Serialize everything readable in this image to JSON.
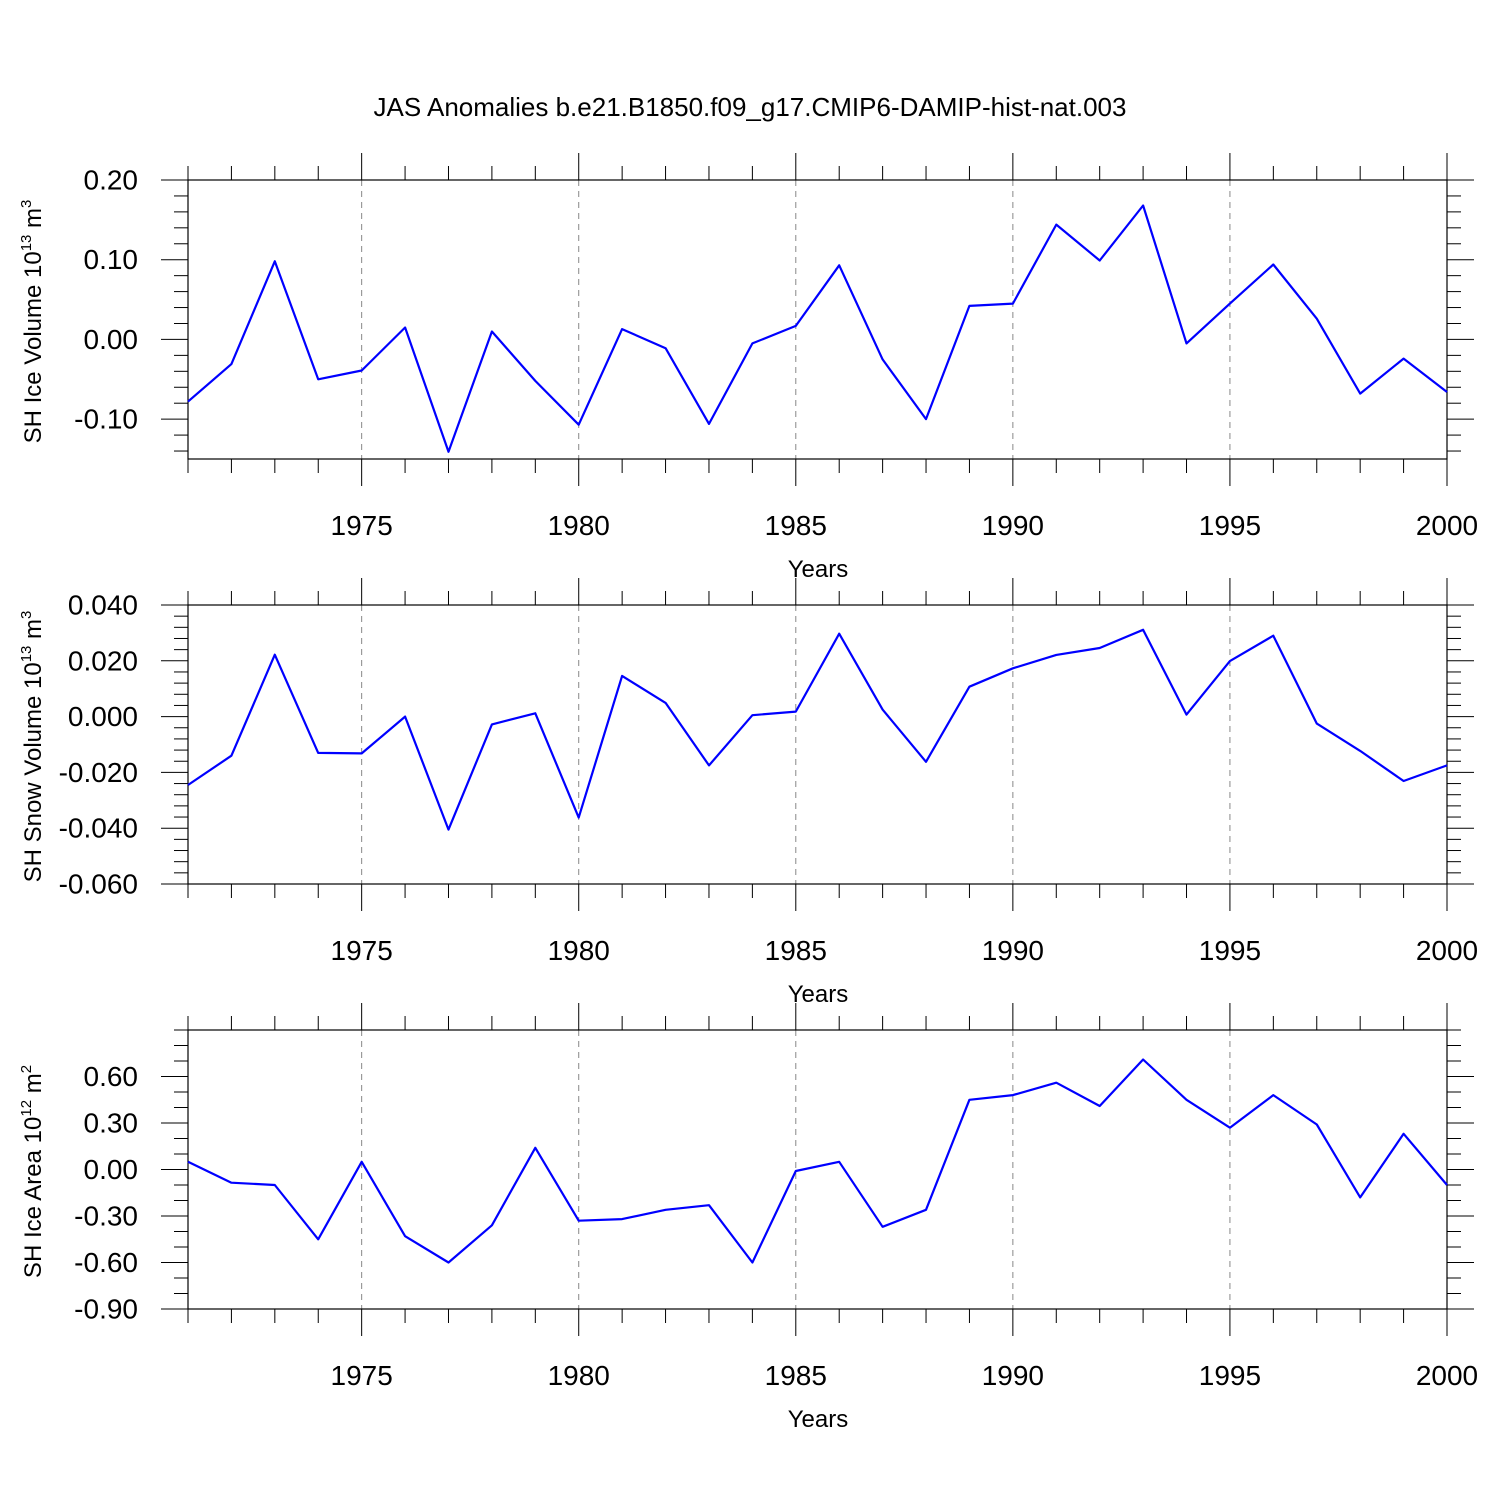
{
  "title": "JAS Anomalies b.e21.B1850.f09_g17.CMIP6-DAMIP-hist-nat.003",
  "line_color": "#0000ff",
  "chart_data": [
    {
      "type": "line",
      "ylabel_prefix": "SH Ice Volume 10",
      "ylabel_exp": "13",
      "ylabel_unit": " m",
      "ylabel_unit_exp": "3",
      "xlabel": "Years",
      "xlim": [
        1971,
        2000
      ],
      "ylim": [
        -0.15,
        0.2
      ],
      "yticks": [
        0.2,
        0.1,
        0.0,
        -0.1
      ],
      "ytick_labels": [
        "0.20",
        "0.10",
        "0.00",
        "-0.10"
      ],
      "xticks": [
        1975,
        1980,
        1985,
        1990,
        1995,
        2000
      ],
      "xtick_labels": [
        "1975",
        "1980",
        "1985",
        "1990",
        "1995",
        "2000"
      ],
      "x": [
        1971,
        1972,
        1973,
        1974,
        1975,
        1976,
        1977,
        1978,
        1979,
        1980,
        1981,
        1982,
        1983,
        1984,
        1985,
        1986,
        1987,
        1988,
        1989,
        1990,
        1991,
        1992,
        1993,
        1994,
        1995,
        1996,
        1997,
        1998,
        1999,
        2000
      ],
      "values": [
        -0.078,
        -0.031,
        0.098,
        -0.05,
        -0.039,
        0.015,
        -0.141,
        0.01,
        -0.052,
        -0.107,
        0.013,
        -0.011,
        -0.106,
        -0.005,
        0.017,
        0.093,
        -0.025,
        -0.1,
        0.042,
        0.045,
        0.144,
        0.099,
        0.168,
        -0.005,
        0.045,
        0.094,
        0.026,
        -0.068,
        -0.024,
        -0.066
      ]
    },
    {
      "type": "line",
      "ylabel_prefix": "SH Snow Volume 10",
      "ylabel_exp": "13",
      "ylabel_unit": " m",
      "ylabel_unit_exp": "3",
      "xlabel": "Years",
      "xlim": [
        1971,
        2000
      ],
      "ylim": [
        -0.06,
        0.04
      ],
      "yticks": [
        0.04,
        0.02,
        0.0,
        -0.02,
        -0.04,
        -0.06
      ],
      "ytick_labels": [
        "0.040",
        "0.020",
        "0.000",
        "-0.020",
        "-0.040",
        "-0.060"
      ],
      "xticks": [
        1975,
        1980,
        1985,
        1990,
        1995,
        2000
      ],
      "xtick_labels": [
        "1975",
        "1980",
        "1985",
        "1990",
        "1995",
        "2000"
      ],
      "x": [
        1971,
        1972,
        1973,
        1974,
        1975,
        1976,
        1977,
        1978,
        1979,
        1980,
        1981,
        1982,
        1983,
        1984,
        1985,
        1986,
        1987,
        1988,
        1989,
        1990,
        1991,
        1992,
        1993,
        1994,
        1995,
        1996,
        1997,
        1998,
        1999,
        2000
      ],
      "values": [
        -0.0245,
        -0.014,
        0.0222,
        -0.013,
        -0.0132,
        0.0,
        -0.0405,
        -0.0028,
        0.0012,
        -0.0362,
        0.0146,
        0.0049,
        -0.0175,
        0.0005,
        0.0018,
        0.0297,
        0.0025,
        -0.0162,
        0.0107,
        0.0173,
        0.0221,
        0.0246,
        0.0311,
        0.0007,
        0.0199,
        0.029,
        -0.0025,
        -0.0123,
        -0.0231,
        -0.0175
      ]
    },
    {
      "type": "line",
      "ylabel_prefix": "SH Ice Area 10",
      "ylabel_exp": "12",
      "ylabel_unit": " m",
      "ylabel_unit_exp": "2",
      "xlabel": "Years",
      "xlim": [
        1971,
        2000
      ],
      "ylim": [
        -0.9,
        0.9
      ],
      "yticks": [
        0.6,
        0.3,
        0.0,
        -0.3,
        -0.6,
        -0.9
      ],
      "ytick_labels": [
        "0.60",
        "0.30",
        "0.00",
        "-0.30",
        "-0.60",
        "-0.90"
      ],
      "xticks": [
        1975,
        1980,
        1985,
        1990,
        1995,
        2000
      ],
      "xtick_labels": [
        "1975",
        "1980",
        "1985",
        "1990",
        "1995",
        "2000"
      ],
      "x": [
        1971,
        1972,
        1973,
        1974,
        1975,
        1976,
        1977,
        1978,
        1979,
        1980,
        1981,
        1982,
        1983,
        1984,
        1985,
        1986,
        1987,
        1988,
        1989,
        1990,
        1991,
        1992,
        1993,
        1994,
        1995,
        1996,
        1997,
        1998,
        1999,
        2000
      ],
      "values": [
        0.05,
        -0.085,
        -0.1,
        -0.45,
        0.05,
        -0.43,
        -0.6,
        -0.36,
        0.14,
        -0.33,
        -0.32,
        -0.26,
        -0.23,
        -0.6,
        -0.01,
        0.05,
        -0.37,
        -0.26,
        0.45,
        0.48,
        0.56,
        0.41,
        0.71,
        0.45,
        0.27,
        0.48,
        0.29,
        -0.18,
        0.23,
        -0.1
      ]
    }
  ]
}
